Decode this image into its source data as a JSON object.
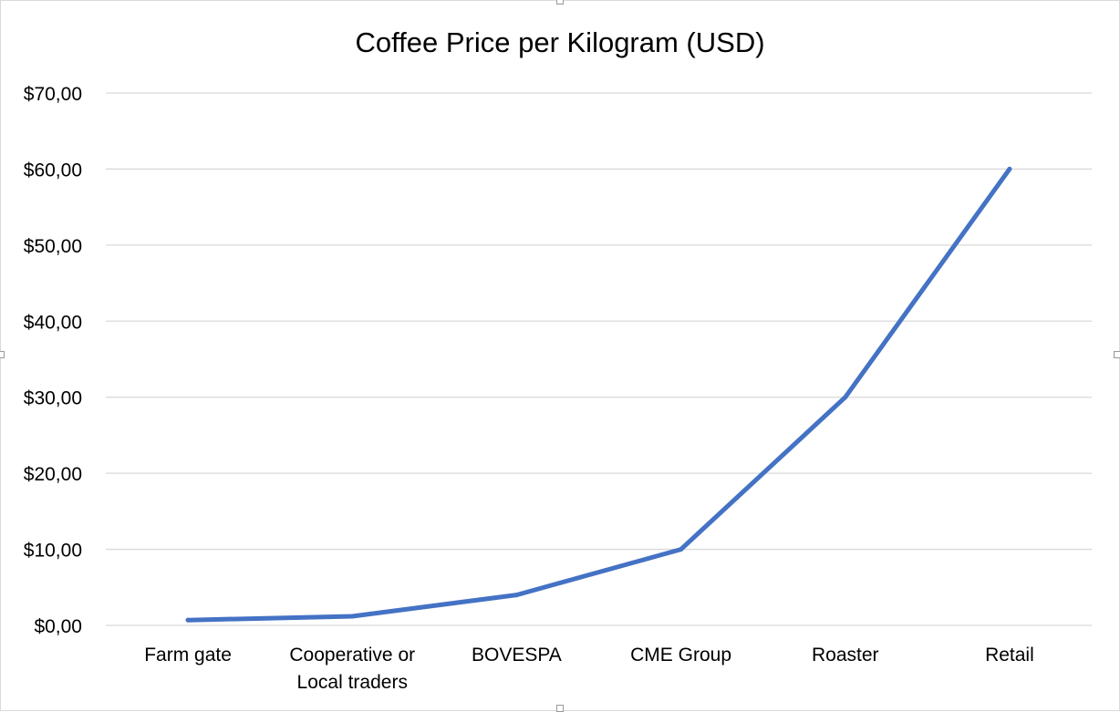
{
  "chart_data": {
    "type": "line",
    "title": "Coffee Price per Kilogram (USD)",
    "xlabel": "",
    "ylabel": "",
    "categories": [
      [
        "Farm gate"
      ],
      [
        "Cooperative or",
        "Local traders"
      ],
      [
        "BOVESPA"
      ],
      [
        "CME Group"
      ],
      [
        "Roaster"
      ],
      [
        "Retail"
      ]
    ],
    "series": [
      {
        "values": [
          0.7,
          1.2,
          4.0,
          10.0,
          30.0,
          60.0
        ]
      }
    ],
    "ylim": [
      0,
      70
    ],
    "yticks": [
      0,
      10,
      20,
      30,
      40,
      50,
      60,
      70
    ],
    "ytick_labels": [
      "$0,00",
      "$10,00",
      "$20,00",
      "$30,00",
      "$40,00",
      "$50,00",
      "$60,00",
      "$70,00"
    ],
    "grid": true,
    "legend": "none",
    "colors": {
      "line": "#4472c4",
      "grid": "#d9d9d9",
      "axis": "#d9d9d9"
    }
  }
}
